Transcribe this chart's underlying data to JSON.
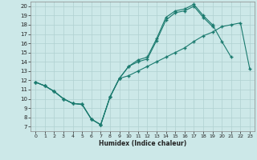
{
  "xlabel": "Humidex (Indice chaleur)",
  "xlim": [
    -0.5,
    23.5
  ],
  "ylim": [
    6.5,
    20.5
  ],
  "xticks": [
    0,
    1,
    2,
    3,
    4,
    5,
    6,
    7,
    8,
    9,
    10,
    11,
    12,
    13,
    14,
    15,
    16,
    17,
    18,
    19,
    20,
    21,
    22,
    23
  ],
  "yticks": [
    7,
    8,
    9,
    10,
    11,
    12,
    13,
    14,
    15,
    16,
    17,
    18,
    19,
    20
  ],
  "background_color": "#cce8e8",
  "grid_color": "#b0d0d0",
  "line_color": "#1a7a6e",
  "line1_x": [
    0,
    1,
    2,
    3,
    4,
    5,
    6,
    7,
    8,
    9,
    10,
    11,
    12,
    13,
    14,
    15,
    16,
    17,
    18,
    19,
    20,
    21,
    22,
    23
  ],
  "line1_y": [
    11.8,
    11.4,
    10.8,
    10.0,
    9.5,
    9.4,
    7.8,
    7.2,
    10.2,
    12.2,
    12.5,
    13.0,
    13.5,
    14.0,
    14.5,
    15.0,
    15.5,
    16.2,
    16.8,
    17.2,
    17.8,
    18.0,
    18.2,
    13.2
  ],
  "line2_x": [
    0,
    1,
    2,
    3,
    4,
    5,
    6,
    7,
    8,
    9,
    10,
    11,
    12,
    13,
    14,
    15,
    16,
    17,
    18,
    19,
    20,
    21
  ],
  "line2_y": [
    11.8,
    11.4,
    10.8,
    10.0,
    9.5,
    9.4,
    7.8,
    7.2,
    10.2,
    12.2,
    13.5,
    14.2,
    14.5,
    16.5,
    18.8,
    19.5,
    19.7,
    20.2,
    19.0,
    18.0,
    16.2,
    14.5
  ],
  "line3_x": [
    0,
    1,
    2,
    3,
    4,
    5,
    6,
    7,
    8,
    9,
    10,
    11,
    12,
    13,
    14,
    15,
    16,
    17,
    18,
    19
  ],
  "line3_y": [
    11.8,
    11.4,
    10.8,
    10.0,
    9.5,
    9.4,
    7.8,
    7.2,
    10.2,
    12.2,
    13.5,
    14.0,
    14.3,
    16.3,
    18.5,
    19.3,
    19.5,
    20.0,
    18.8,
    17.8
  ]
}
